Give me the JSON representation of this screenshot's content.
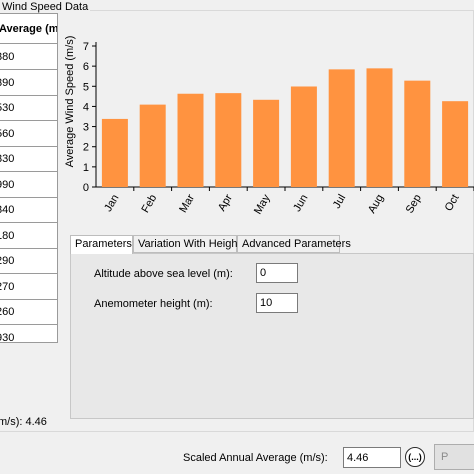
{
  "group": {
    "title": "Wind Speed Data"
  },
  "grid": {
    "header": "Average (m/",
    "rows": [
      "380",
      "390",
      "530",
      "560",
      "330",
      "990",
      "340",
      "180",
      "290",
      "270",
      "260",
      "930"
    ]
  },
  "chart_data": {
    "type": "bar",
    "categories": [
      "Jan",
      "Feb",
      "Mar",
      "Apr",
      "May",
      "Jun",
      "Jul",
      "Aug",
      "Sep",
      "Oct"
    ],
    "values": [
      3.38,
      4.09,
      4.63,
      4.66,
      4.33,
      4.99,
      5.84,
      5.89,
      5.28,
      4.26
    ],
    "ylabel": "Average Wind Speed (m/s)",
    "xlabel": "",
    "ylim": [
      0,
      7
    ],
    "yticks": [
      "0",
      "1",
      "2",
      "3",
      "4",
      "5",
      "6",
      "7"
    ],
    "color": "#ff9340",
    "grid": false
  },
  "tabs": [
    {
      "label": "Parameters",
      "active": true
    },
    {
      "label": "Variation With Height",
      "active": false
    },
    {
      "label": "Advanced Parameters",
      "active": false
    }
  ],
  "params": {
    "altitude_label": "Altitude above sea level (m):",
    "altitude_value": "0",
    "anemometer_label": "Anemometer height (m):",
    "anemometer_value": "10"
  },
  "status": {
    "annual_text": "m/s): 4.46"
  },
  "bottom": {
    "scaled_label": "Scaled Annual Average (m/s):",
    "scaled_value": "4.46",
    "ellipsis_label": "(...)",
    "button_label": "P"
  }
}
